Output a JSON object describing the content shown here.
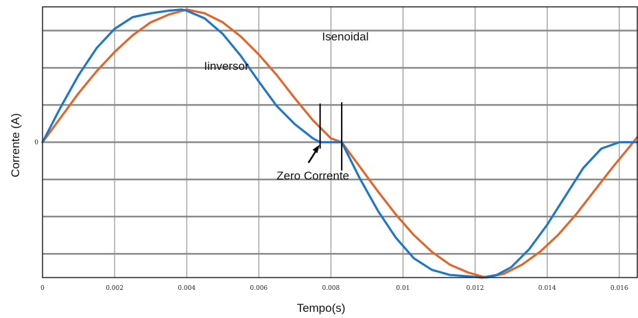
{
  "chart_data": {
    "type": "line",
    "title": "",
    "xlabel": "Tempo(s)",
    "ylabel": "Corrente (A)",
    "xlim": [
      0,
      0.0165
    ],
    "ylim": [
      -1.05,
      1.05
    ],
    "x_ticks": [
      0,
      0.002,
      0.004,
      0.006,
      0.008,
      0.01,
      0.012,
      0.014,
      0.016
    ],
    "x_tick_labels": [
      "0",
      "0.002",
      "0.004",
      "0.006",
      "0.008",
      "0.01",
      "0.012",
      "0.014",
      "0.016"
    ],
    "y_ticks": [
      -0.866,
      -0.577,
      -0.289,
      0,
      0.289,
      0.577,
      0.866
    ],
    "y_tick_labels": [
      "",
      "",
      "",
      "0",
      "",
      "",
      ""
    ],
    "grid": true,
    "series": [
      {
        "name": "Iinversor",
        "color": "#1f77c8",
        "x": [
          0,
          0.0005,
          0.001,
          0.0015,
          0.002,
          0.0025,
          0.003,
          0.0035,
          0.00385,
          0.004,
          0.0045,
          0.005,
          0.0055,
          0.006,
          0.0065,
          0.007,
          0.0075,
          0.0077,
          0.0083,
          0.0088,
          0.0093,
          0.0098,
          0.0103,
          0.0108,
          0.0113,
          0.0118,
          0.0122,
          0.0126,
          0.013,
          0.0135,
          0.014,
          0.0145,
          0.015,
          0.0155,
          0.016,
          0.0165
        ],
        "y": [
          0,
          0.27,
          0.52,
          0.73,
          0.88,
          0.97,
          1.0,
          1.02,
          1.03,
          1.02,
          0.96,
          0.84,
          0.67,
          0.47,
          0.28,
          0.14,
          0.03,
          0.0,
          0.0,
          -0.28,
          -0.53,
          -0.74,
          -0.9,
          -0.99,
          -1.03,
          -1.04,
          -1.05,
          -1.03,
          -0.97,
          -0.83,
          -0.64,
          -0.42,
          -0.2,
          -0.05,
          0.0,
          0.0
        ]
      },
      {
        "name": "Isenoidal",
        "color": "#e2652a",
        "x": [
          0,
          0.0005,
          0.001,
          0.0015,
          0.002,
          0.0025,
          0.003,
          0.0035,
          0.004,
          0.0045,
          0.005,
          0.0055,
          0.006,
          0.0065,
          0.007,
          0.0075,
          0.008,
          0.0083,
          0.0088,
          0.0093,
          0.0098,
          0.0103,
          0.0108,
          0.0113,
          0.0118,
          0.0123,
          0.0128,
          0.0133,
          0.0138,
          0.0143,
          0.0148,
          0.0153,
          0.0158,
          0.0163,
          0.0165
        ],
        "y": [
          0,
          0.19,
          0.38,
          0.55,
          0.7,
          0.83,
          0.93,
          0.99,
          1.03,
          1.0,
          0.93,
          0.82,
          0.68,
          0.52,
          0.34,
          0.17,
          0.03,
          0.0,
          -0.19,
          -0.38,
          -0.56,
          -0.72,
          -0.85,
          -0.95,
          -1.01,
          -1.05,
          -1.02,
          -0.95,
          -0.85,
          -0.72,
          -0.56,
          -0.38,
          -0.2,
          -0.03,
          0.04
        ]
      }
    ],
    "annotations": [
      {
        "text": "Isenoidal",
        "x": 0.0084,
        "y": 0.79
      },
      {
        "text": "Iinversor",
        "x": 0.0051,
        "y": 0.56
      },
      {
        "text": "Zero Corrente",
        "x": 0.0075,
        "y": -0.29
      }
    ],
    "markers": [
      {
        "type": "vline",
        "x": 0.0077,
        "y_range": [
          -0.05,
          0.3
        ]
      },
      {
        "type": "vline",
        "x": 0.0083,
        "y_range": [
          -0.22,
          0.31
        ]
      }
    ]
  }
}
